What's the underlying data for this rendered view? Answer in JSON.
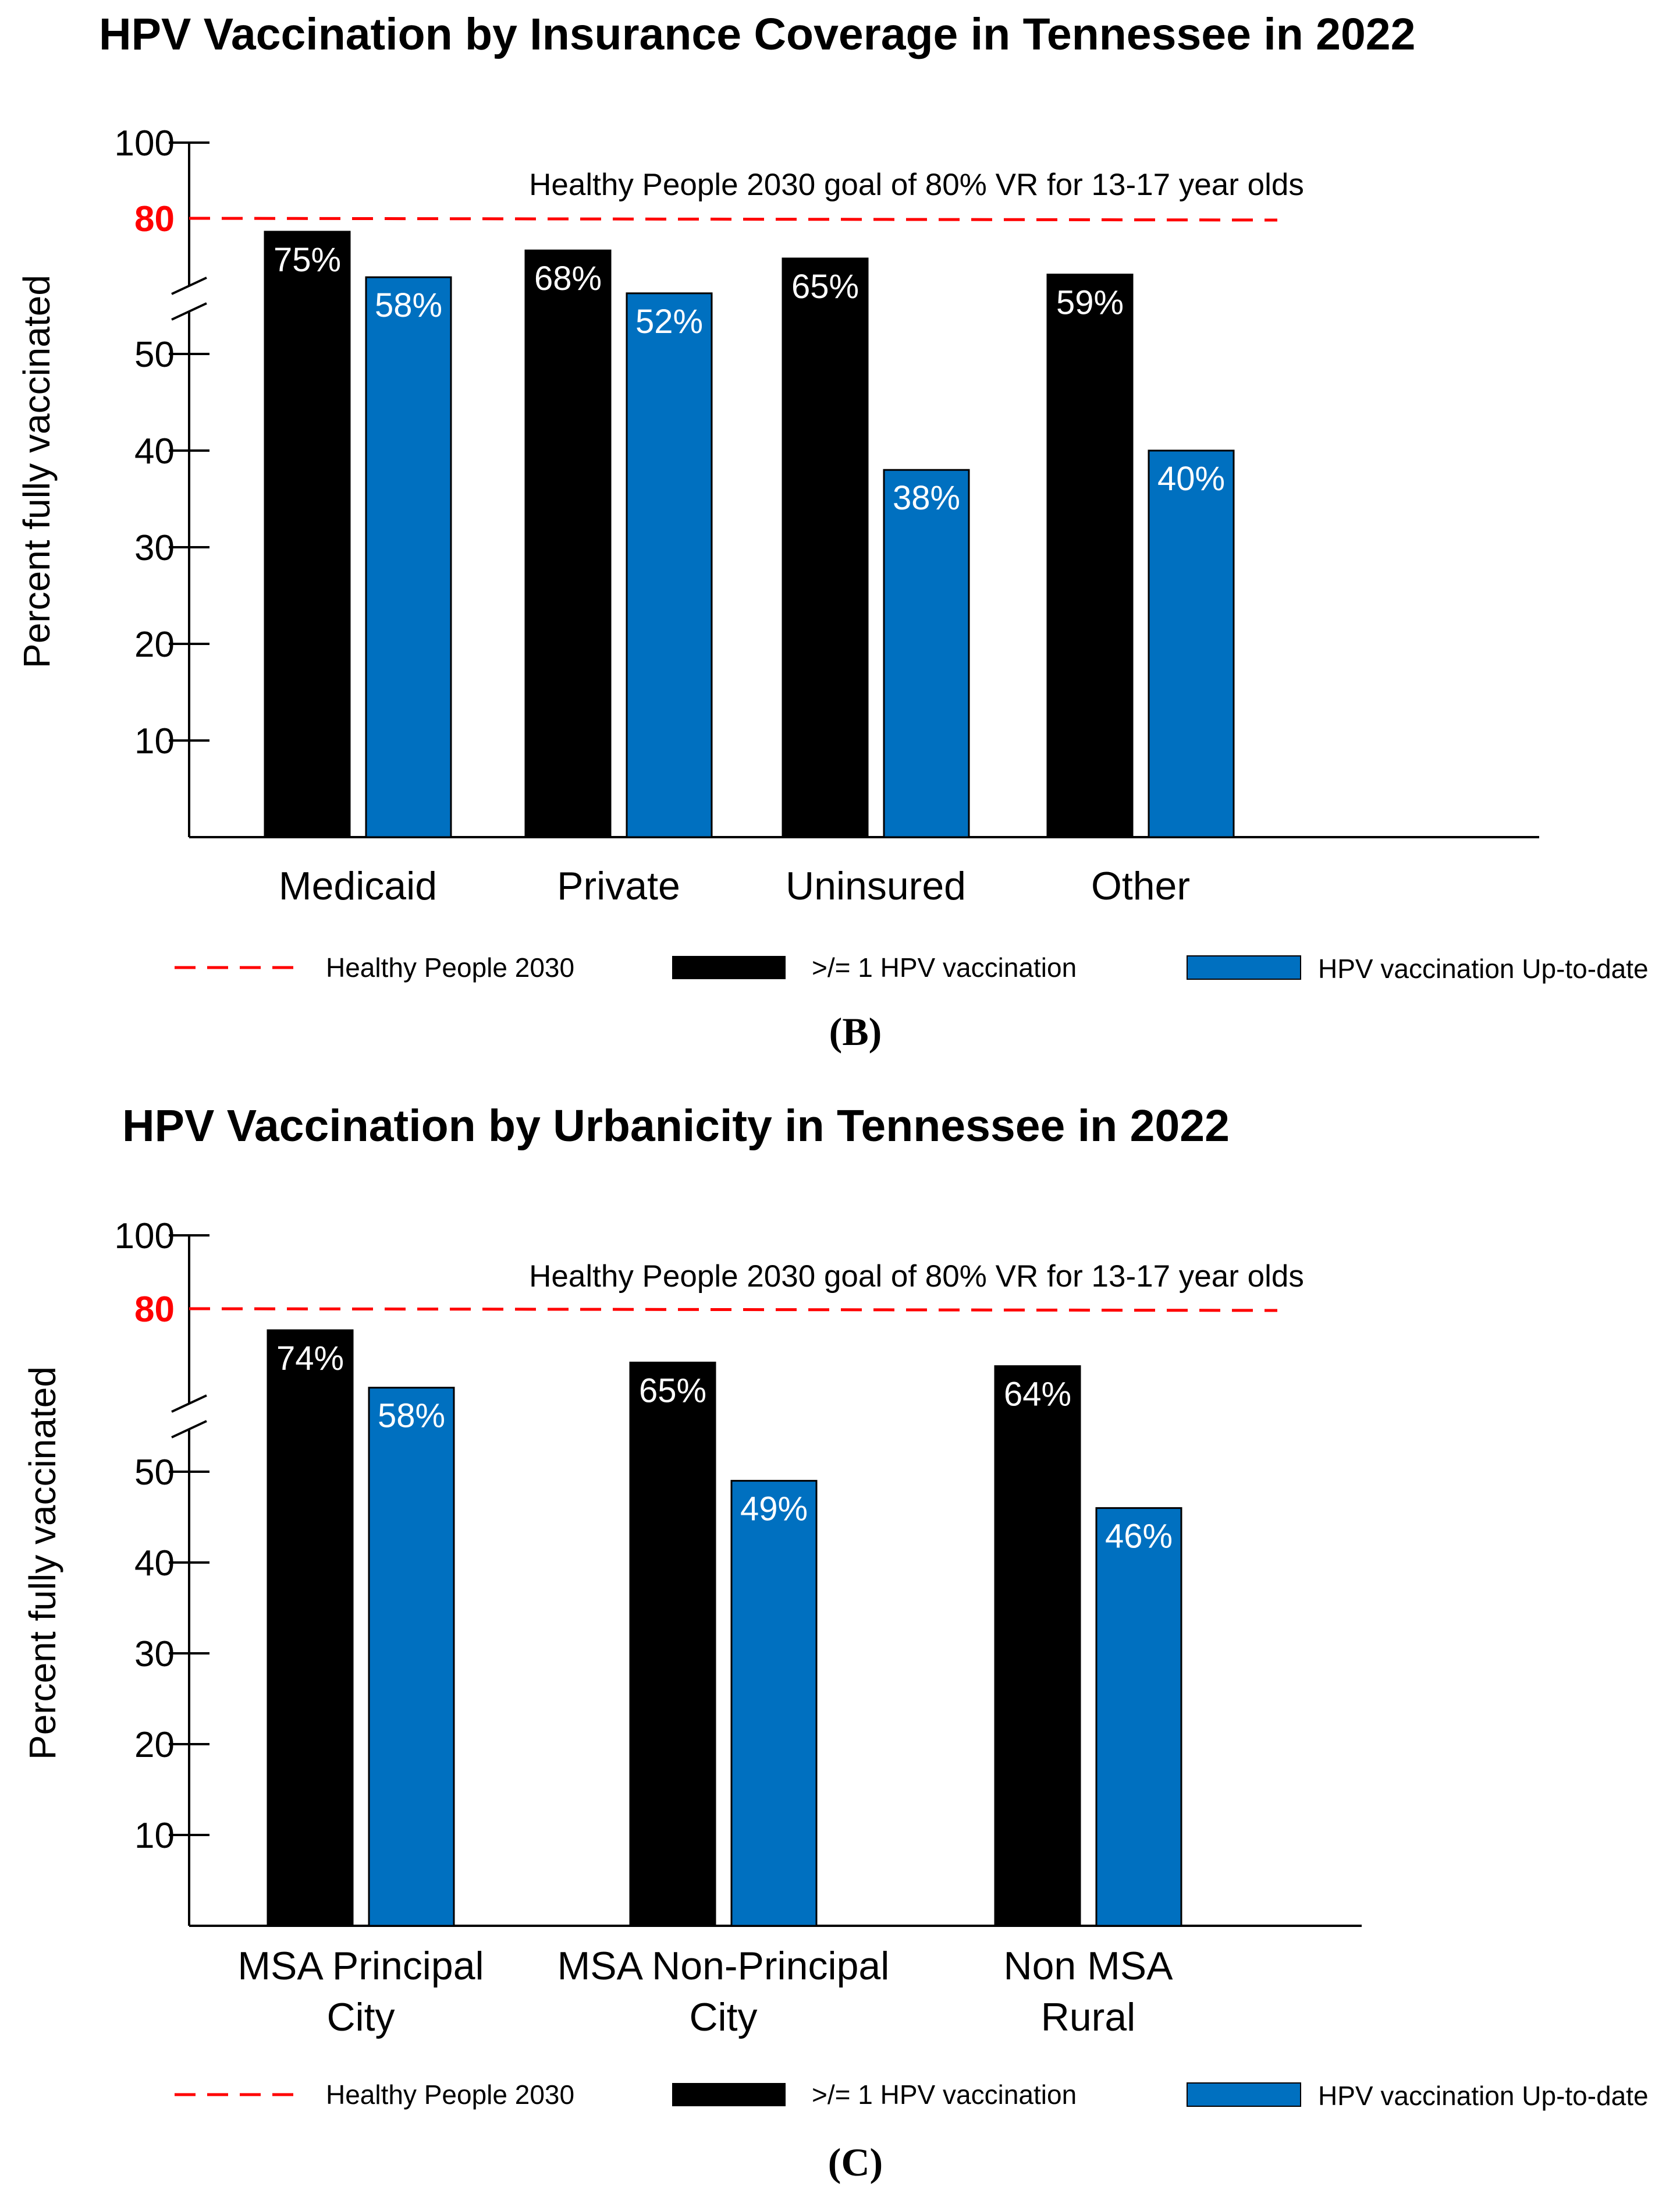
{
  "colors": {
    "black_bar": "#000000",
    "blue_bar": "#0070c0",
    "goal_line": "#ff0000"
  },
  "chart_data": [
    {
      "type": "bar",
      "panel": "(B)",
      "title": "HPV Vaccination by Insurance Coverage in Tennessee in 2022",
      "ylabel": "Percent fully vaccinated",
      "xlabel": "",
      "yticks": [
        "10",
        "20",
        "30",
        "40",
        "50",
        "80",
        "100"
      ],
      "ylim": [
        0,
        100
      ],
      "axis_break": true,
      "categories": [
        [
          "Medicaid"
        ],
        [
          "Private"
        ],
        [
          "Uninsured"
        ],
        [
          "Other"
        ]
      ],
      "series": [
        {
          "name": ">/= 1 HPV vaccination",
          "values": [
            75,
            68,
            65,
            59
          ],
          "labels": [
            "75%",
            "68%",
            "65%",
            "59%"
          ]
        },
        {
          "name": "HPV vaccination Up-to-date",
          "values": [
            58,
            52,
            38,
            40
          ],
          "labels": [
            "58%",
            "52%",
            "38%",
            "40%"
          ]
        }
      ],
      "goal": {
        "value": 80,
        "text": "Healthy People 2030 goal of 80% VR for 13-17 year olds"
      },
      "legend": [
        "Healthy People 2030",
        ">/= 1 HPV vaccination",
        "HPV vaccination Up-to-date"
      ]
    },
    {
      "type": "bar",
      "panel": "(C)",
      "title": "HPV Vaccination by Urbanicity in Tennessee in 2022",
      "ylabel": "Percent fully vaccinated",
      "xlabel": "",
      "yticks": [
        "10",
        "20",
        "30",
        "40",
        "50",
        "80",
        "100"
      ],
      "ylim": [
        0,
        100
      ],
      "axis_break": true,
      "categories": [
        [
          "MSA Principal",
          "City"
        ],
        [
          "MSA Non-Principal",
          "City"
        ],
        [
          "Non MSA",
          "Rural"
        ]
      ],
      "series": [
        {
          "name": ">/= 1 HPV vaccination",
          "values": [
            74,
            65,
            64
          ],
          "labels": [
            "74%",
            "65%",
            "64%"
          ]
        },
        {
          "name": "HPV vaccination Up-to-date",
          "values": [
            58,
            49,
            46
          ],
          "labels": [
            "58%",
            "49%",
            "46%"
          ]
        }
      ],
      "goal": {
        "value": 80,
        "text": "Healthy People 2030 goal of 80% VR for 13-17 year olds"
      },
      "legend": [
        "Healthy People 2030",
        ">/= 1 HPV vaccination",
        "HPV vaccination Up-to-date"
      ]
    }
  ]
}
